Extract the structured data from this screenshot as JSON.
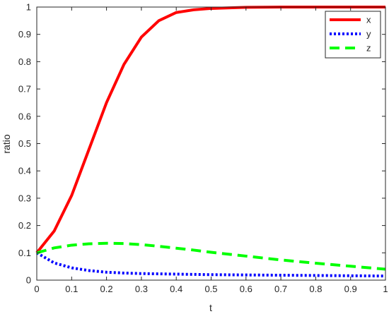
{
  "chart_data": {
    "type": "line",
    "title": "",
    "xlabel": "t",
    "ylabel": "ratio",
    "xlim": [
      0,
      1
    ],
    "ylim": [
      0,
      1
    ],
    "grid": false,
    "legend_position": "top-right",
    "xticks": [
      "0",
      "0.1",
      "0.2",
      "0.3",
      "0.4",
      "0.5",
      "0.6",
      "0.7",
      "0.8",
      "0.9",
      "1"
    ],
    "yticks": [
      "0",
      "0.1",
      "0.2",
      "0.3",
      "0.4",
      "0.5",
      "0.6",
      "0.7",
      "0.8",
      "0.9",
      "1"
    ],
    "x": [
      0,
      0.05,
      0.1,
      0.15,
      0.2,
      0.25,
      0.3,
      0.35,
      0.4,
      0.45,
      0.5,
      0.6,
      0.7,
      0.8,
      0.9,
      1.0
    ],
    "series": [
      {
        "name": "x",
        "color": "#ff0000",
        "style": "solid",
        "values": [
          0.1,
          0.18,
          0.31,
          0.48,
          0.65,
          0.79,
          0.89,
          0.95,
          0.98,
          0.99,
          0.995,
          0.999,
          1.0,
          1.0,
          1.0,
          1.0
        ]
      },
      {
        "name": "y",
        "color": "#0000ff",
        "style": "dotted",
        "values": [
          0.1,
          0.063,
          0.045,
          0.035,
          0.029,
          0.026,
          0.024,
          0.023,
          0.022,
          0.021,
          0.02,
          0.019,
          0.018,
          0.017,
          0.016,
          0.015
        ]
      },
      {
        "name": "z",
        "color": "#00ff00",
        "style": "dashed",
        "values": [
          0.1,
          0.118,
          0.128,
          0.133,
          0.135,
          0.134,
          0.13,
          0.124,
          0.117,
          0.11,
          0.102,
          0.088,
          0.074,
          0.062,
          0.051,
          0.04
        ]
      }
    ]
  }
}
